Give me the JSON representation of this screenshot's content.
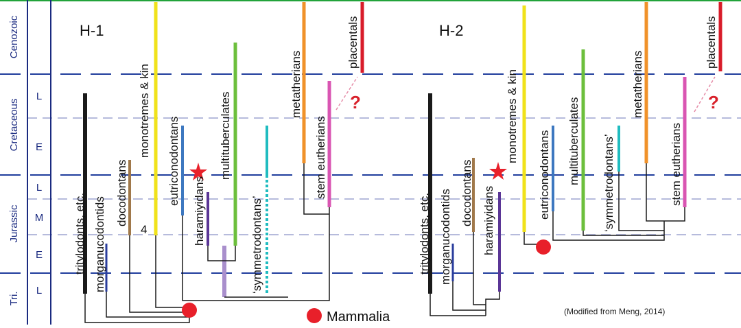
{
  "timescale": {
    "eras": [
      "Cenozoic",
      "Cretaceous",
      "Jurassic",
      "Tri."
    ],
    "subdivisions": [
      "L",
      "E",
      "L",
      "M",
      "E",
      "L"
    ]
  },
  "trees": [
    {
      "title": "H-1",
      "taxa": [
        "tritylodonts, etc.",
        "morganucodontids",
        "docodontans",
        "monotremes & kin",
        "eutriconodontans",
        "haramiyidans",
        "multituberculates",
        "‘symmetrodontans’",
        "metatherians",
        "stem eutherians",
        "placentals"
      ],
      "marker": "4",
      "question": "?"
    },
    {
      "title": "H-2",
      "taxa": [
        "tritylodonts, etc.",
        "morganucodontids",
        "docodontans",
        "haramiyidans",
        "monotremes & kin",
        "eutriconodontans",
        "multituberculates",
        "‘symmetrodontans’",
        "metatherians",
        "stem eutherians",
        "placentals"
      ],
      "question": "?"
    }
  ],
  "legend": {
    "label": "Mammalia"
  },
  "credit": "(Modified from Meng, 2014)",
  "colors": {
    "axis_blue": "#1a2a80",
    "dash_blue": "#1f3c9c",
    "top_green": "#22a33a",
    "mammalia_red": "#e8202a",
    "bar_black": "#1a1a1a",
    "bar_navy": "#2a3d9c",
    "bar_brown": "#a0784a",
    "bar_yellow": "#f0e21a",
    "bar_steelblue": "#3d78c0",
    "bar_purple": "#5a3596",
    "bar_lavender": "#a98fcc",
    "bar_green": "#6cbf3c",
    "bar_cyan": "#20bcc0",
    "bar_orange": "#f0922a",
    "bar_pink": "#d955b2",
    "bar_red": "#d81c2a"
  }
}
